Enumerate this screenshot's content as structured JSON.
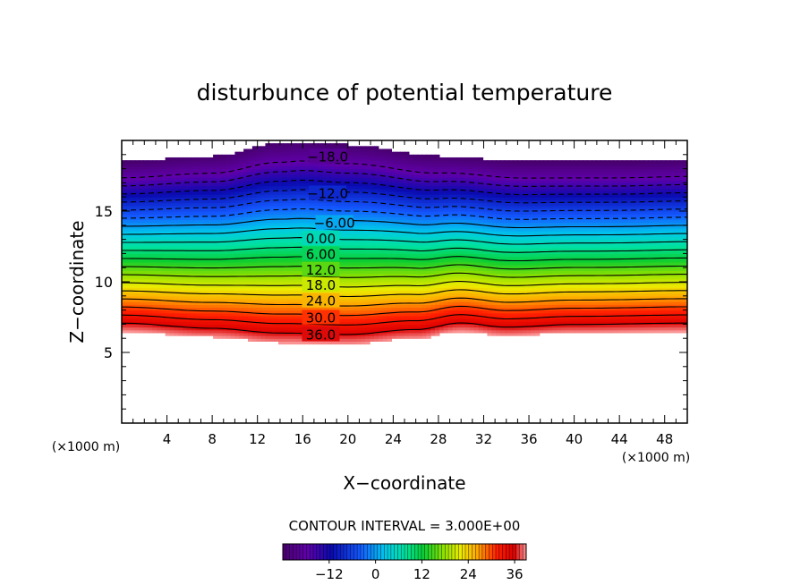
{
  "chart_data": {
    "type": "contour",
    "title": "disturbunce of potential temperature",
    "xlabel": "X−coordinate",
    "ylabel": "Z−coordinate",
    "x_unit_left": "(×1000 m)",
    "x_unit_right": "(×1000 m)",
    "xlim": [
      0,
      50
    ],
    "ylim": [
      0,
      20
    ],
    "x_ticks": [
      4,
      8,
      12,
      16,
      20,
      24,
      28,
      32,
      36,
      40,
      44,
      48
    ],
    "y_ticks": [
      5,
      10,
      15
    ],
    "contour_interval_text": "CONTOUR INTERVAL = 3.000E+00",
    "value_range": [
      -24,
      39
    ],
    "contour_levels": [
      -18,
      -15,
      -12,
      -9,
      -6,
      -3,
      0,
      3,
      6,
      9,
      12,
      15,
      18,
      21,
      24,
      27,
      30,
      33,
      36
    ],
    "negative_contours_dashed": true,
    "contour_labels": [
      {
        "text": "−18.0",
        "x": 18.2,
        "z": 18.9
      },
      {
        "text": "−12.0",
        "x": 18.2,
        "z": 16.3
      },
      {
        "text": "−6.00",
        "x": 18.8,
        "z": 14.2
      },
      {
        "text": "0.00",
        "x": 17.6,
        "z": 13.1
      },
      {
        "text": "6.00",
        "x": 17.6,
        "z": 12.0
      },
      {
        "text": "12.0",
        "x": 17.6,
        "z": 10.9
      },
      {
        "text": "18.0",
        "x": 17.6,
        "z": 9.8
      },
      {
        "text": "24.0",
        "x": 17.6,
        "z": 8.7
      },
      {
        "text": "30.0",
        "x": 17.6,
        "z": 7.5
      },
      {
        "text": "36.0",
        "x": 17.6,
        "z": 6.3
      }
    ],
    "top_edge_z": [
      [
        0,
        18.5
      ],
      [
        8,
        18.9
      ],
      [
        14,
        19.8
      ],
      [
        16,
        19.9
      ],
      [
        20,
        19.7
      ],
      [
        28,
        18.9
      ],
      [
        36,
        18.5
      ],
      [
        44,
        18.5
      ],
      [
        50,
        18.6
      ]
    ],
    "bottom_edge_z": [
      [
        0,
        6.5
      ],
      [
        8,
        6.1
      ],
      [
        14,
        5.7
      ],
      [
        20,
        5.6
      ],
      [
        26,
        6.0
      ],
      [
        30,
        6.5
      ],
      [
        34,
        6.2
      ],
      [
        40,
        6.4
      ],
      [
        50,
        6.5
      ]
    ],
    "colorbar": {
      "ticks": [
        -12,
        0,
        12,
        24,
        36
      ],
      "tick_labels": [
        "−12",
        "0",
        "12",
        "24",
        "36"
      ],
      "range": [
        -24,
        39
      ]
    }
  }
}
